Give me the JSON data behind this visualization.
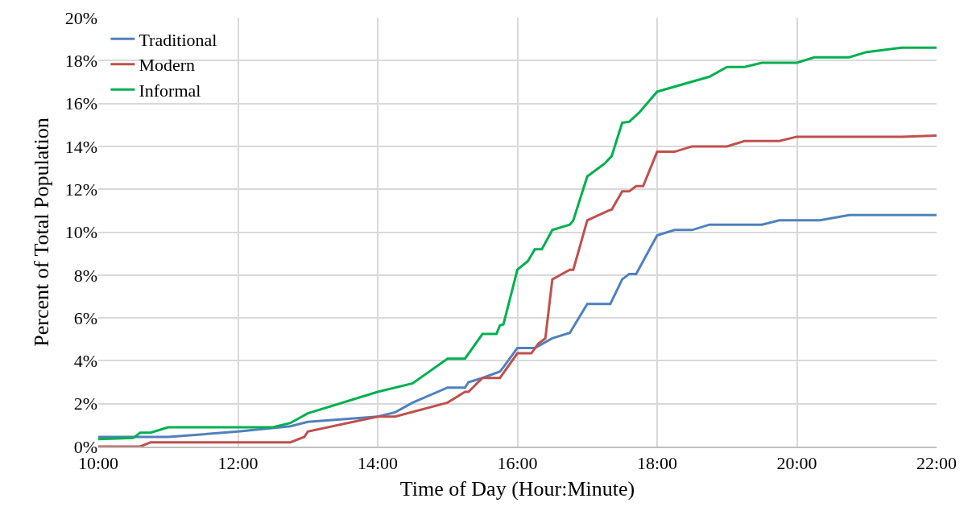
{
  "chart_data": {
    "type": "line",
    "xlabel": "Time of Day (Hour:Minute)",
    "ylabel": "Percent of Total Population",
    "xlim": [
      10,
      22
    ],
    "xticks": [
      {
        "value": 10,
        "label": "10:00"
      },
      {
        "value": 12,
        "label": "12:00"
      },
      {
        "value": 14,
        "label": "14:00"
      },
      {
        "value": 16,
        "label": "16:00"
      },
      {
        "value": 18,
        "label": "18:00"
      },
      {
        "value": 20,
        "label": "20:00"
      },
      {
        "value": 22,
        "label": "22:00"
      }
    ],
    "ylim": [
      0,
      20
    ],
    "yticks": [
      {
        "value": 0,
        "label": "0%"
      },
      {
        "value": 2,
        "label": "2%"
      },
      {
        "value": 4,
        "label": "4%"
      },
      {
        "value": 6,
        "label": "6%"
      },
      {
        "value": 8,
        "label": "8%"
      },
      {
        "value": 10,
        "label": "10%"
      },
      {
        "value": 12,
        "label": "12%"
      },
      {
        "value": 14,
        "label": "14%"
      },
      {
        "value": 16,
        "label": "16%"
      },
      {
        "value": 18,
        "label": "18%"
      },
      {
        "value": 20,
        "label": "20%"
      }
    ],
    "grid": true,
    "legend": "top left",
    "marker": "none",
    "line_style": "solid",
    "series": [
      {
        "name": "Traditional",
        "color": "#4f81bd",
        "x": [
          10,
          10.75,
          11,
          12,
          12.75,
          13,
          14,
          14.25,
          14.5,
          15,
          15.25,
          15.3,
          15.5,
          15.75,
          15.8,
          16,
          16.25,
          16.5,
          16.75,
          17,
          17.33,
          17.5,
          17.6,
          17.7,
          18,
          18.25,
          18.5,
          18.75,
          19.5,
          19.75,
          20.33,
          20.75,
          22
        ],
        "values": [
          0.45,
          0.45,
          0.45,
          0.7,
          0.95,
          1.15,
          1.4,
          1.6,
          2.05,
          2.75,
          2.75,
          3.0,
          3.2,
          3.5,
          3.7,
          4.6,
          4.6,
          5.05,
          5.3,
          6.65,
          6.65,
          7.8,
          8.05,
          8.05,
          9.85,
          10.1,
          10.1,
          10.35,
          10.35,
          10.55,
          10.55,
          10.8,
          10.8
        ]
      },
      {
        "name": "Modern",
        "color": "#c0504d",
        "x": [
          10,
          10.6,
          10.75,
          12.75,
          12.95,
          13,
          14,
          14.25,
          15,
          15.25,
          15.3,
          15.5,
          15.75,
          16,
          16.2,
          16.3,
          16.4,
          16.5,
          16.75,
          16.8,
          17,
          17.3,
          17.35,
          17.5,
          17.6,
          17.7,
          17.8,
          18,
          18.25,
          18.5,
          19,
          19.25,
          19.75,
          20,
          21.5,
          22
        ],
        "values": [
          0,
          0,
          0.2,
          0.2,
          0.45,
          0.7,
          1.4,
          1.4,
          2.05,
          2.55,
          2.55,
          3.2,
          3.2,
          4.35,
          4.35,
          4.8,
          5.05,
          7.8,
          8.25,
          8.25,
          10.55,
          11.0,
          11.05,
          11.9,
          11.9,
          12.15,
          12.15,
          13.75,
          13.75,
          14.0,
          14.0,
          14.25,
          14.25,
          14.45,
          14.45,
          14.5
        ]
      },
      {
        "name": "Informal",
        "color": "#00b050",
        "x": [
          10,
          10.5,
          10.6,
          10.75,
          11,
          12.5,
          12.75,
          13,
          14,
          14.5,
          15,
          15.25,
          15.5,
          15.7,
          15.75,
          15.8,
          16,
          16.15,
          16.25,
          16.35,
          16.5,
          16.75,
          16.8,
          17,
          17.25,
          17.35,
          17.5,
          17.6,
          17.75,
          18,
          18.75,
          19,
          19.25,
          19.5,
          20,
          20.25,
          20.75,
          21,
          21.5,
          22
        ],
        "values": [
          0.35,
          0.4,
          0.65,
          0.65,
          0.9,
          0.9,
          1.1,
          1.55,
          2.55,
          2.95,
          4.1,
          4.1,
          5.25,
          5.25,
          5.65,
          5.7,
          8.25,
          8.65,
          9.2,
          9.2,
          10.1,
          10.35,
          10.55,
          12.6,
          13.2,
          13.55,
          15.1,
          15.15,
          15.6,
          16.55,
          17.25,
          17.7,
          17.7,
          17.9,
          17.9,
          18.15,
          18.15,
          18.4,
          18.6,
          18.6
        ]
      }
    ]
  }
}
